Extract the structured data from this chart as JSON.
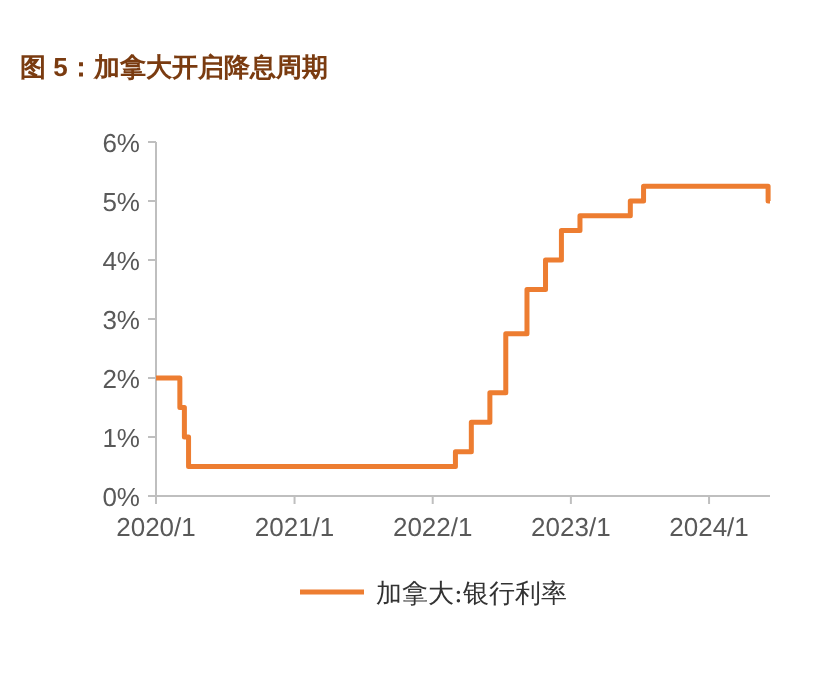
{
  "chart_data": {
    "type": "step",
    "title": "图 5：加拿大开启降息周期",
    "x": [
      "2020-01-01",
      "2020-03-04",
      "2020-03-16",
      "2020-03-27",
      "2022-03-02",
      "2022-04-13",
      "2022-06-01",
      "2022-07-13",
      "2022-09-07",
      "2022-10-26",
      "2022-12-07",
      "2023-01-25",
      "2023-06-07",
      "2023-07-12",
      "2024-06-05",
      "2024-06-10"
    ],
    "series": [
      {
        "name": "加拿大:银行利率",
        "color": "#ed7d31",
        "values": [
          2.0,
          1.5,
          1.0,
          0.5,
          0.75,
          1.25,
          1.75,
          2.75,
          3.5,
          4.0,
          4.5,
          4.75,
          5.0,
          5.25,
          5.0,
          5.0
        ]
      }
    ],
    "xlim": [
      "2020-01-01",
      "2024-06-10"
    ],
    "xticks": [
      {
        "value": "2020-01-01",
        "label": "2020/1"
      },
      {
        "value": "2021-01-01",
        "label": "2021/1"
      },
      {
        "value": "2022-01-01",
        "label": "2022/1"
      },
      {
        "value": "2023-01-01",
        "label": "2023/1"
      },
      {
        "value": "2024-01-01",
        "label": "2024/1"
      }
    ],
    "ylim": [
      0,
      6
    ],
    "yticks": [
      {
        "value": 0,
        "label": "0%"
      },
      {
        "value": 1,
        "label": "1%"
      },
      {
        "value": 2,
        "label": "2%"
      },
      {
        "value": 3,
        "label": "3%"
      },
      {
        "value": 4,
        "label": "4%"
      },
      {
        "value": 5,
        "label": "5%"
      },
      {
        "value": 6,
        "label": "6%"
      }
    ],
    "legend": "bottom"
  }
}
